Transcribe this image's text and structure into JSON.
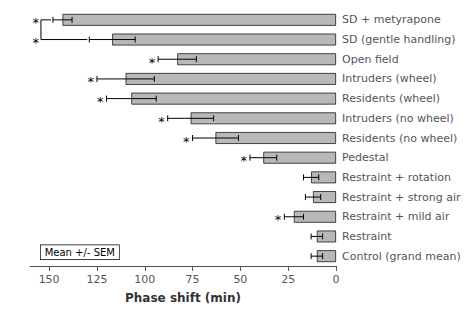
{
  "chart_data": {
    "type": "bar",
    "orientation": "horizontal",
    "categories": [
      "SD + metyrapone",
      "SD (gentle handling)",
      "Open field",
      "Intruders (wheel)",
      "Residents (wheel)",
      "Intruders (no wheel)",
      "Residents (no wheel)",
      "Pedestal",
      "Restraint + rotation",
      "Restraint + strong air",
      "Restraint + mild air",
      "Restraint",
      "Control (grand mean)"
    ],
    "values": [
      143,
      117,
      83,
      110,
      107,
      76,
      63,
      38,
      13,
      12,
      22,
      10,
      10
    ],
    "errors": [
      5,
      12,
      10,
      15,
      13,
      12,
      12,
      7,
      4,
      4,
      5,
      3,
      3
    ],
    "significance_marks": [
      "*",
      "*",
      "*",
      "*",
      "*",
      "*",
      "*",
      "*",
      null,
      null,
      "*",
      null,
      null
    ],
    "bracket": [
      "SD + metyrapone",
      "SD (gentle handling)"
    ],
    "color": "#b8b8b8",
    "xlabel": "Phase shift (min)",
    "annotation": "Mean +/- SEM",
    "xlim": [
      160,
      0
    ],
    "xticks": [
      150,
      125,
      100,
      75,
      50,
      25,
      0
    ],
    "grid": false
  }
}
